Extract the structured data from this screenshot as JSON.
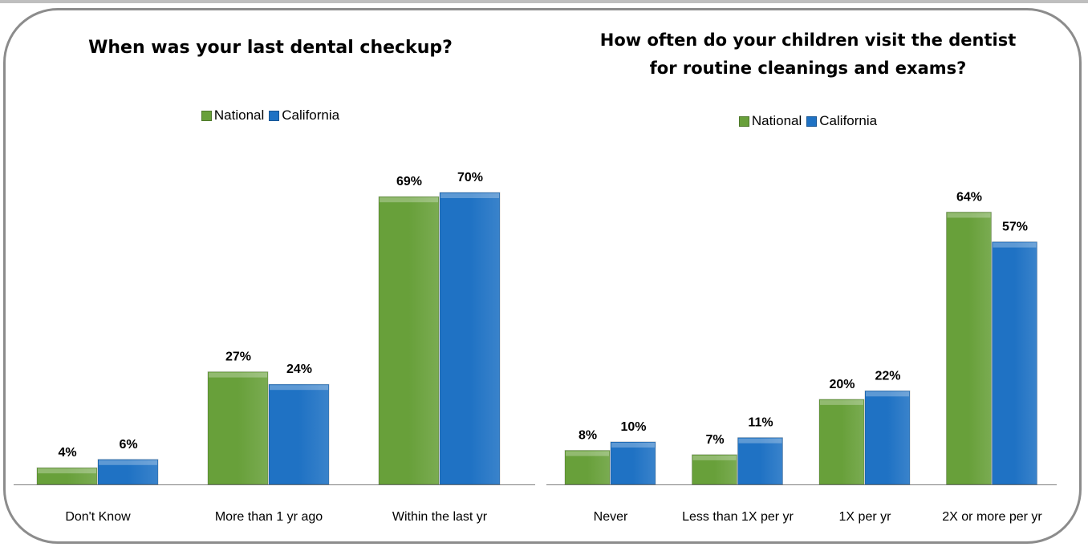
{
  "colors": {
    "national": "#68a03a",
    "california": "#1f72c4",
    "frame": "#8c8c8c",
    "axis": "#7f7f7f"
  },
  "chart_data": [
    {
      "type": "bar",
      "title": "When was your last dental checkup?",
      "categories": [
        "Don't Know",
        "More than 1 yr ago",
        "Within the last yr"
      ],
      "series": [
        {
          "name": "National",
          "values": [
            4,
            27,
            69
          ],
          "labels": [
            "4%",
            "27%",
            "69%"
          ]
        },
        {
          "name": "California",
          "values": [
            6,
            24,
            70
          ],
          "labels": [
            "6%",
            "24%",
            "70%"
          ]
        }
      ],
      "ylim": [
        0,
        75
      ],
      "legend": "top-center",
      "grid": false
    },
    {
      "type": "bar",
      "title": "How often do your children visit the dentist\nfor routine cleanings and exams?",
      "categories": [
        "Never",
        "Less than 1X per yr",
        "1X per yr",
        "2X or more per yr"
      ],
      "series": [
        {
          "name": "National",
          "values": [
            8,
            7,
            20,
            64
          ],
          "labels": [
            "8%",
            "7%",
            "20%",
            "64%"
          ]
        },
        {
          "name": "California",
          "values": [
            10,
            11,
            22,
            57
          ],
          "labels": [
            "10%",
            "11%",
            "22%",
            "57%"
          ]
        }
      ],
      "ylim": [
        0,
        72
      ],
      "legend": "top-center",
      "grid": false
    }
  ]
}
